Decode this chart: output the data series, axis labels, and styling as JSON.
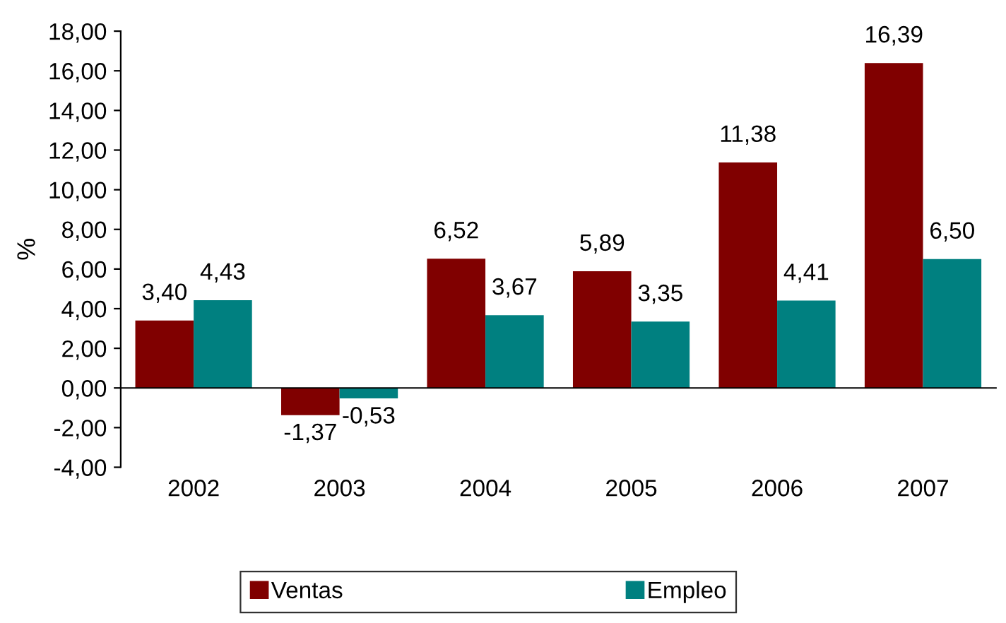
{
  "chart_data": {
    "type": "bar",
    "ylabel": "%",
    "categories": [
      "2002",
      "2003",
      "2004",
      "2005",
      "2006",
      "2007"
    ],
    "series": [
      {
        "name": "Ventas",
        "color": "#800000",
        "values": [
          3.4,
          -1.37,
          6.52,
          5.89,
          11.38,
          16.39
        ],
        "value_labels": [
          "3,40",
          "-1,37",
          "6,52",
          "5,89",
          "11,38",
          "16,39"
        ]
      },
      {
        "name": "Empleo",
        "color": "#008080",
        "values": [
          4.43,
          -0.53,
          3.67,
          3.35,
          4.41,
          6.5
        ],
        "value_labels": [
          "4,43",
          "-0,53",
          "3,67",
          "3,35",
          "4,41",
          "6,50"
        ]
      }
    ],
    "ylim": [
      -4,
      18
    ],
    "yticks": [
      {
        "value": -4,
        "label": "-4,00"
      },
      {
        "value": -2,
        "label": "-2,00"
      },
      {
        "value": 0,
        "label": "0,00"
      },
      {
        "value": 2,
        "label": "2,00"
      },
      {
        "value": 4,
        "label": "4,00"
      },
      {
        "value": 6,
        "label": "6,00"
      },
      {
        "value": 8,
        "label": "8,00"
      },
      {
        "value": 10,
        "label": "10,00"
      },
      {
        "value": 12,
        "label": "12,00"
      },
      {
        "value": 14,
        "label": "14,00"
      },
      {
        "value": 16,
        "label": "16,00"
      },
      {
        "value": 18,
        "label": "18,00"
      }
    ],
    "legend": "bottom"
  }
}
